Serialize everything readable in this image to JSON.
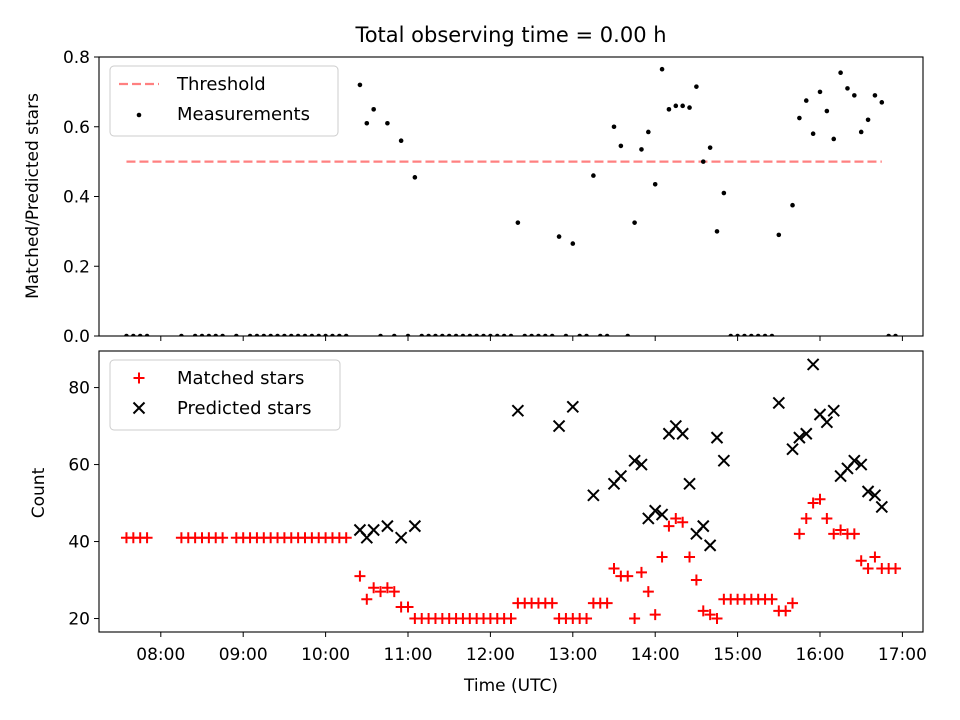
{
  "chart_data": [
    {
      "type": "scatter",
      "title": "Total observing time = 0.00 h",
      "xlabel": "",
      "ylabel": "Matched/Predicted stars",
      "xlim": [
        "07:15",
        "17:15"
      ],
      "ylim": [
        0,
        0.8
      ],
      "yticks": [
        "0.0",
        "0.2",
        "0.4",
        "0.6",
        "0.8"
      ],
      "xticks": [
        "08:00",
        "09:00",
        "10:00",
        "11:00",
        "12:00",
        "13:00",
        "14:00",
        "15:00",
        "16:00",
        "17:00"
      ],
      "show_xticklabels": false,
      "legend_position": "upper-left",
      "threshold": {
        "name": "Threshold",
        "value": 0.5,
        "x_range": [
          "07:35",
          "16:45"
        ],
        "color": "#ff8080"
      },
      "series": [
        {
          "name": "Measurements",
          "marker": "dot",
          "color": "#000000",
          "points": [
            [
              "07:35",
              0
            ],
            [
              "07:40",
              0
            ],
            [
              "07:45",
              0
            ],
            [
              "07:50",
              0
            ],
            [
              "08:15",
              0
            ],
            [
              "08:25",
              0
            ],
            [
              "08:30",
              0
            ],
            [
              "08:35",
              0
            ],
            [
              "08:40",
              0
            ],
            [
              "08:45",
              0
            ],
            [
              "08:55",
              0
            ],
            [
              "09:05",
              0
            ],
            [
              "09:10",
              0
            ],
            [
              "09:15",
              0
            ],
            [
              "09:20",
              0
            ],
            [
              "09:25",
              0
            ],
            [
              "09:30",
              0
            ],
            [
              "09:35",
              0
            ],
            [
              "09:40",
              0
            ],
            [
              "09:45",
              0
            ],
            [
              "09:50",
              0
            ],
            [
              "09:55",
              0
            ],
            [
              "10:00",
              0
            ],
            [
              "10:05",
              0
            ],
            [
              "10:10",
              0
            ],
            [
              "10:15",
              0
            ],
            [
              "10:25",
              0.72
            ],
            [
              "10:30",
              0.61
            ],
            [
              "10:35",
              0.65
            ],
            [
              "10:40",
              0
            ],
            [
              "10:45",
              0.61
            ],
            [
              "10:50",
              0
            ],
            [
              "10:55",
              0.56
            ],
            [
              "11:00",
              0
            ],
            [
              "11:05",
              0.455
            ],
            [
              "11:10",
              0
            ],
            [
              "11:15",
              0
            ],
            [
              "11:20",
              0
            ],
            [
              "11:25",
              0
            ],
            [
              "11:30",
              0
            ],
            [
              "11:35",
              0
            ],
            [
              "11:40",
              0
            ],
            [
              "11:45",
              0
            ],
            [
              "11:50",
              0
            ],
            [
              "11:55",
              0
            ],
            [
              "12:00",
              0
            ],
            [
              "12:05",
              0
            ],
            [
              "12:10",
              0
            ],
            [
              "12:15",
              0
            ],
            [
              "12:20",
              0.325
            ],
            [
              "12:25",
              0
            ],
            [
              "12:30",
              0
            ],
            [
              "12:35",
              0
            ],
            [
              "12:40",
              0
            ],
            [
              "12:45",
              0
            ],
            [
              "12:50",
              0.285
            ],
            [
              "12:55",
              0
            ],
            [
              "13:00",
              0.265
            ],
            [
              "13:05",
              0
            ],
            [
              "13:10",
              0
            ],
            [
              "13:15",
              0.46
            ],
            [
              "13:20",
              0
            ],
            [
              "13:25",
              0
            ],
            [
              "13:30",
              0.6
            ],
            [
              "13:35",
              0.545
            ],
            [
              "13:40",
              0
            ],
            [
              "13:45",
              0.325
            ],
            [
              "13:50",
              0.535
            ],
            [
              "13:55",
              0.585
            ],
            [
              "14:00",
              0.435
            ],
            [
              "14:05",
              0.765
            ],
            [
              "14:10",
              0.65
            ],
            [
              "14:15",
              0.66
            ],
            [
              "14:20",
              0.66
            ],
            [
              "14:25",
              0.655
            ],
            [
              "14:30",
              0.715
            ],
            [
              "14:35",
              0.5
            ],
            [
              "14:40",
              0.54
            ],
            [
              "14:45",
              0.3
            ],
            [
              "14:50",
              0.41
            ],
            [
              "14:55",
              0
            ],
            [
              "15:00",
              0
            ],
            [
              "15:05",
              0
            ],
            [
              "15:10",
              0
            ],
            [
              "15:15",
              0
            ],
            [
              "15:20",
              0
            ],
            [
              "15:25",
              0
            ],
            [
              "15:30",
              0.29
            ],
            [
              "15:40",
              0.375
            ],
            [
              "15:45",
              0.625
            ],
            [
              "15:50",
              0.675
            ],
            [
              "15:55",
              0.58
            ],
            [
              "16:00",
              0.7
            ],
            [
              "16:05",
              0.645
            ],
            [
              "16:10",
              0.565
            ],
            [
              "16:15",
              0.755
            ],
            [
              "16:20",
              0.71
            ],
            [
              "16:25",
              0.69
            ],
            [
              "16:30",
              0.585
            ],
            [
              "16:35",
              0.62
            ],
            [
              "16:40",
              0.69
            ],
            [
              "16:45",
              0.67
            ],
            [
              "16:50",
              0
            ],
            [
              "16:55",
              0
            ]
          ]
        }
      ]
    },
    {
      "type": "scatter",
      "title": "",
      "xlabel": "Time (UTC)",
      "ylabel": "Count",
      "xlim": [
        "07:15",
        "17:15"
      ],
      "ylim": [
        16.5,
        89.5
      ],
      "yticks": [
        "20",
        "40",
        "60",
        "80"
      ],
      "xticks": [
        "08:00",
        "09:00",
        "10:00",
        "11:00",
        "12:00",
        "13:00",
        "14:00",
        "15:00",
        "16:00",
        "17:00"
      ],
      "show_xticklabels": true,
      "legend_position": "upper-left",
      "series": [
        {
          "name": "Matched stars",
          "marker": "plus",
          "color": "#ff0000",
          "points": [
            [
              "07:35",
              41
            ],
            [
              "07:40",
              41
            ],
            [
              "07:45",
              41
            ],
            [
              "07:50",
              41
            ],
            [
              "08:15",
              41
            ],
            [
              "08:20",
              41
            ],
            [
              "08:25",
              41
            ],
            [
              "08:30",
              41
            ],
            [
              "08:35",
              41
            ],
            [
              "08:40",
              41
            ],
            [
              "08:45",
              41
            ],
            [
              "08:55",
              41
            ],
            [
              "09:00",
              41
            ],
            [
              "09:05",
              41
            ],
            [
              "09:10",
              41
            ],
            [
              "09:15",
              41
            ],
            [
              "09:20",
              41
            ],
            [
              "09:25",
              41
            ],
            [
              "09:30",
              41
            ],
            [
              "09:35",
              41
            ],
            [
              "09:40",
              41
            ],
            [
              "09:45",
              41
            ],
            [
              "09:50",
              41
            ],
            [
              "09:55",
              41
            ],
            [
              "10:00",
              41
            ],
            [
              "10:05",
              41
            ],
            [
              "10:10",
              41
            ],
            [
              "10:15",
              41
            ],
            [
              "10:25",
              31
            ],
            [
              "10:30",
              25
            ],
            [
              "10:35",
              28
            ],
            [
              "10:40",
              27
            ],
            [
              "10:45",
              28
            ],
            [
              "10:50",
              27
            ],
            [
              "10:55",
              23
            ],
            [
              "11:00",
              23
            ],
            [
              "11:05",
              20
            ],
            [
              "11:10",
              20
            ],
            [
              "11:15",
              20
            ],
            [
              "11:20",
              20
            ],
            [
              "11:25",
              20
            ],
            [
              "11:30",
              20
            ],
            [
              "11:35",
              20
            ],
            [
              "11:40",
              20
            ],
            [
              "11:45",
              20
            ],
            [
              "11:50",
              20
            ],
            [
              "11:55",
              20
            ],
            [
              "12:00",
              20
            ],
            [
              "12:05",
              20
            ],
            [
              "12:10",
              20
            ],
            [
              "12:15",
              20
            ],
            [
              "12:20",
              24
            ],
            [
              "12:25",
              24
            ],
            [
              "12:30",
              24
            ],
            [
              "12:35",
              24
            ],
            [
              "12:40",
              24
            ],
            [
              "12:45",
              24
            ],
            [
              "12:50",
              20
            ],
            [
              "12:55",
              20
            ],
            [
              "13:00",
              20
            ],
            [
              "13:05",
              20
            ],
            [
              "13:10",
              20
            ],
            [
              "13:15",
              24
            ],
            [
              "13:20",
              24
            ],
            [
              "13:25",
              24
            ],
            [
              "13:30",
              33
            ],
            [
              "13:35",
              31
            ],
            [
              "13:40",
              31
            ],
            [
              "13:45",
              20
            ],
            [
              "13:50",
              32
            ],
            [
              "13:55",
              27
            ],
            [
              "14:00",
              21
            ],
            [
              "14:05",
              36
            ],
            [
              "14:10",
              44
            ],
            [
              "14:15",
              46
            ],
            [
              "14:20",
              45
            ],
            [
              "14:25",
              36
            ],
            [
              "14:30",
              30
            ],
            [
              "14:35",
              22
            ],
            [
              "14:40",
              21
            ],
            [
              "14:45",
              20
            ],
            [
              "14:50",
              25
            ],
            [
              "14:55",
              25
            ],
            [
              "15:00",
              25
            ],
            [
              "15:05",
              25
            ],
            [
              "15:10",
              25
            ],
            [
              "15:15",
              25
            ],
            [
              "15:20",
              25
            ],
            [
              "15:25",
              25
            ],
            [
              "15:30",
              22
            ],
            [
              "15:35",
              22
            ],
            [
              "15:40",
              24
            ],
            [
              "15:45",
              42
            ],
            [
              "15:50",
              46
            ],
            [
              "15:55",
              50
            ],
            [
              "16:00",
              51
            ],
            [
              "16:05",
              46
            ],
            [
              "16:10",
              42
            ],
            [
              "16:15",
              43
            ],
            [
              "16:20",
              42
            ],
            [
              "16:25",
              42
            ],
            [
              "16:30",
              35
            ],
            [
              "16:35",
              33
            ],
            [
              "16:40",
              36
            ],
            [
              "16:45",
              33
            ],
            [
              "16:50",
              33
            ],
            [
              "16:55",
              33
            ]
          ]
        },
        {
          "name": "Predicted stars",
          "marker": "x",
          "color": "#000000",
          "points": [
            [
              "10:25",
              43
            ],
            [
              "10:30",
              41
            ],
            [
              "10:35",
              43
            ],
            [
              "10:45",
              44
            ],
            [
              "10:55",
              41
            ],
            [
              "11:05",
              44
            ],
            [
              "12:20",
              74
            ],
            [
              "12:50",
              70
            ],
            [
              "13:00",
              75
            ],
            [
              "13:15",
              52
            ],
            [
              "13:30",
              55
            ],
            [
              "13:35",
              57
            ],
            [
              "13:45",
              61
            ],
            [
              "13:50",
              60
            ],
            [
              "13:55",
              46
            ],
            [
              "14:00",
              48
            ],
            [
              "14:05",
              47
            ],
            [
              "14:10",
              68
            ],
            [
              "14:15",
              70
            ],
            [
              "14:20",
              68
            ],
            [
              "14:25",
              55
            ],
            [
              "14:30",
              42
            ],
            [
              "14:35",
              44
            ],
            [
              "14:40",
              39
            ],
            [
              "14:45",
              67
            ],
            [
              "14:50",
              61
            ],
            [
              "15:30",
              76
            ],
            [
              "15:40",
              64
            ],
            [
              "15:45",
              67
            ],
            [
              "15:50",
              68
            ],
            [
              "15:55",
              86
            ],
            [
              "16:00",
              73
            ],
            [
              "16:05",
              71
            ],
            [
              "16:10",
              74
            ],
            [
              "16:15",
              57
            ],
            [
              "16:20",
              59
            ],
            [
              "16:25",
              61
            ],
            [
              "16:30",
              60
            ],
            [
              "16:35",
              53
            ],
            [
              "16:40",
              52
            ],
            [
              "16:45",
              49
            ]
          ]
        }
      ]
    }
  ]
}
